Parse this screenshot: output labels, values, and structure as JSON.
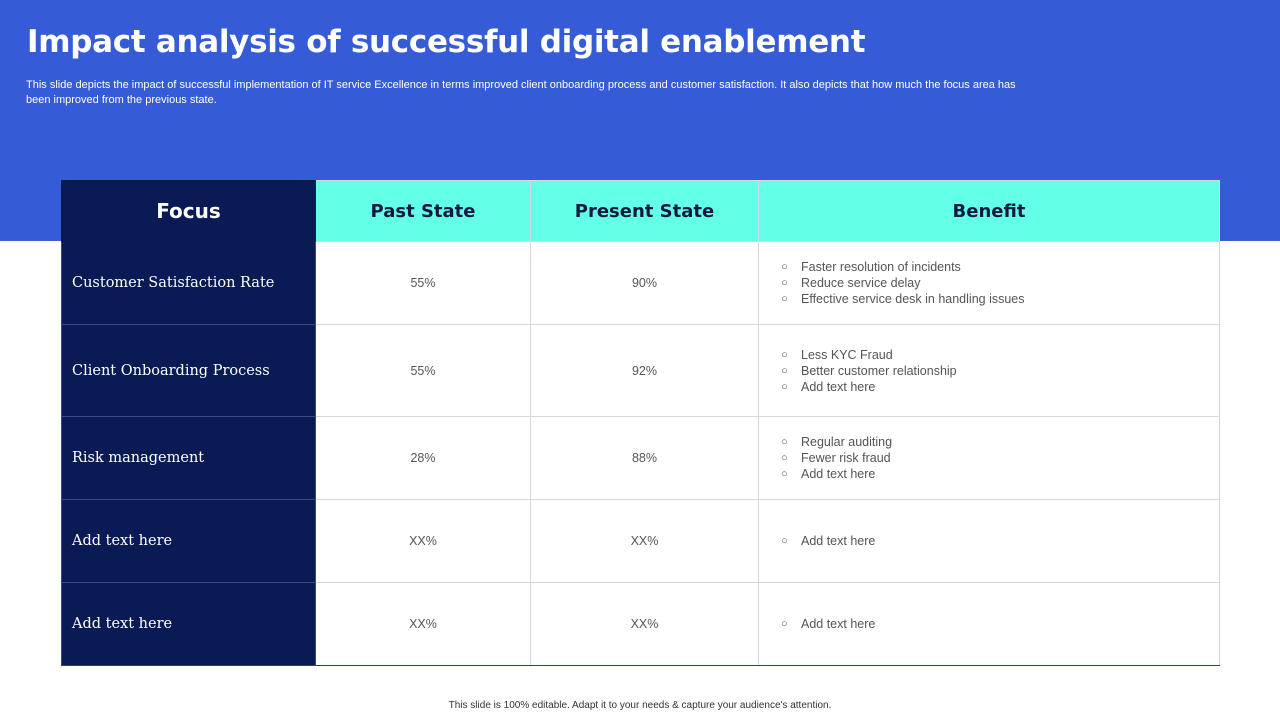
{
  "header": {
    "title": "Impact analysis of successful digital enablement",
    "subtitle": "This slide depicts the impact of successful implementation of  IT  service Excellence in terms improved client onboarding process and customer satisfaction.  It also depicts that how much the focus area has been improved from the previous state."
  },
  "colors": {
    "banner": "#355BD6",
    "focus_column": "#0A1A54",
    "header_accent": "#63FFE6"
  },
  "table": {
    "headers": [
      "Focus",
      "Past State",
      "Present State",
      "Benefit"
    ],
    "bullet_icon": "circle-bullet",
    "rows": [
      {
        "focus": "Customer Satisfaction Rate",
        "past": "55%",
        "present": "90%",
        "benefits": [
          "Faster resolution of incidents",
          "Reduce service delay",
          "Effective service desk in handling issues"
        ]
      },
      {
        "focus": "Client Onboarding Process",
        "past": "55%",
        "present": "92%",
        "benefits": [
          "Less KYC Fraud",
          "Better customer relationship",
          "Add text here"
        ]
      },
      {
        "focus": "Risk management",
        "past": "28%",
        "present": "88%",
        "benefits": [
          "Regular auditing",
          "Fewer risk fraud",
          "Add text here"
        ]
      },
      {
        "focus": "Add text here",
        "past": "XX%",
        "present": "XX%",
        "benefits": [
          "Add text here"
        ]
      },
      {
        "focus": "Add text here",
        "past": "XX%",
        "present": "XX%",
        "benefits": [
          "Add text here"
        ]
      }
    ]
  },
  "footer": {
    "text": "This slide is 100% editable.  Adapt it to your needs & capture your audience's attention."
  }
}
